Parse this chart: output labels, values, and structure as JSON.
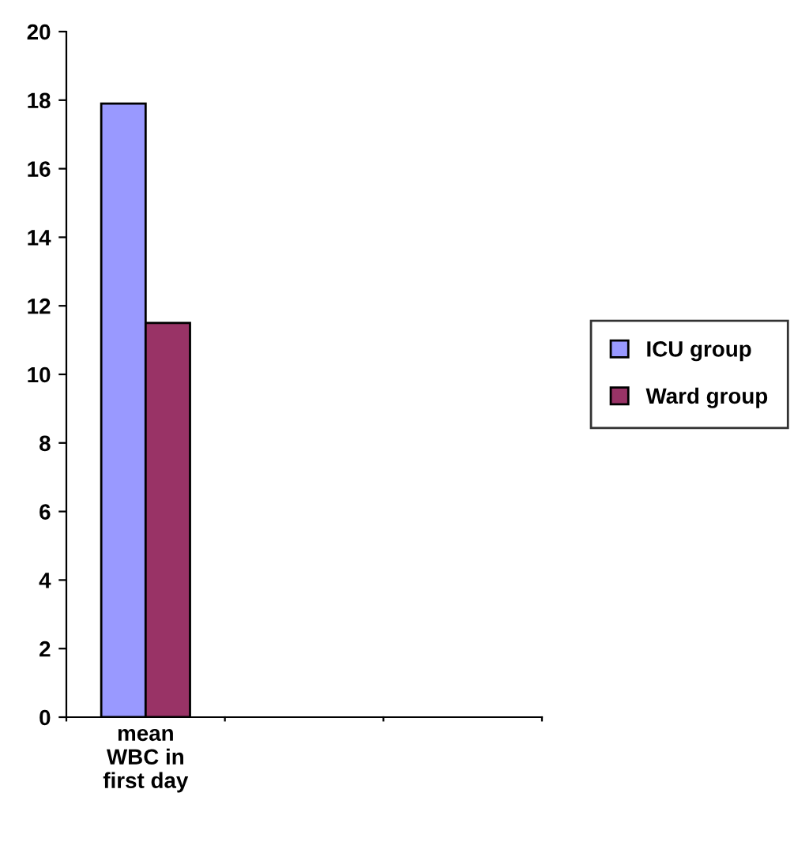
{
  "chart_data": {
    "type": "bar",
    "categories": [
      "mean\nWBC in\nfirst day",
      null,
      null
    ],
    "series": [
      {
        "name": "ICU group",
        "color": "#9999ff",
        "values": [
          17.9,
          null,
          null
        ]
      },
      {
        "name": "Ward group",
        "color": "#993366",
        "values": [
          11.5,
          null,
          null
        ]
      }
    ],
    "ylim": [
      0,
      20
    ],
    "yticks": [
      0,
      2,
      4,
      6,
      8,
      10,
      12,
      14,
      16,
      18,
      20
    ],
    "grid": false,
    "legend": "right"
  }
}
